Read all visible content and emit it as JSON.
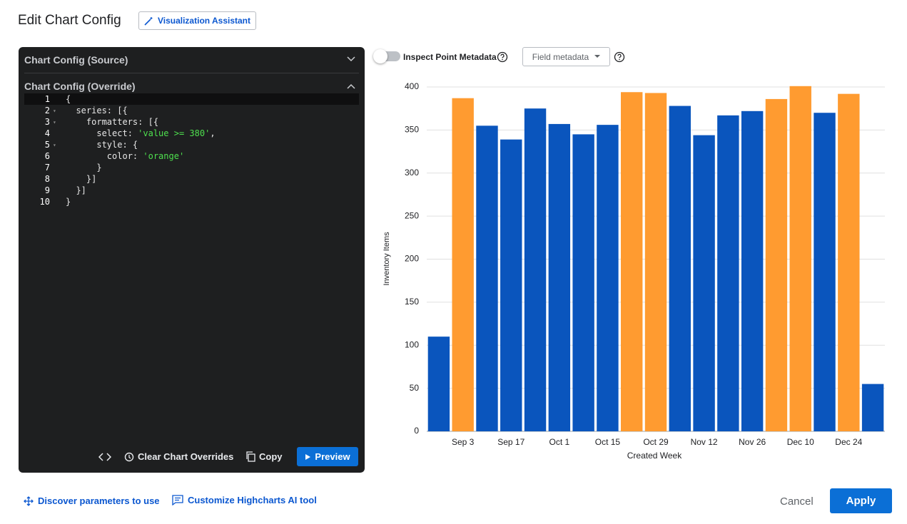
{
  "header": {
    "title": "Edit Chart Config",
    "assistant_button": "Visualization Assistant"
  },
  "editor": {
    "source_title": "Chart Config (Source)",
    "override_title": "Chart Config (Override)",
    "lines": [
      {
        "number": 1,
        "text": "{"
      },
      {
        "number": 2,
        "text": "  series: [{",
        "fold": true
      },
      {
        "number": 3,
        "text": "    formatters: [{",
        "fold": true
      },
      {
        "number": 4,
        "text": "      select: 'value >= 380',"
      },
      {
        "number": 5,
        "text": "      style: {",
        "fold": true
      },
      {
        "number": 6,
        "text": "        color: 'orange'"
      },
      {
        "number": 7,
        "text": "      }"
      },
      {
        "number": 8,
        "text": "    }]"
      },
      {
        "number": 9,
        "text": "  }]"
      },
      {
        "number": 10,
        "text": "}"
      }
    ],
    "actions": {
      "clear": "Clear Chart Overrides",
      "copy": "Copy",
      "preview": "Preview"
    }
  },
  "toolbar": {
    "inspect": "Inspect Point Metadata",
    "field_metadata": "Field metadata"
  },
  "chart_data": {
    "type": "bar",
    "xlabel": "Created Week",
    "ylabel": "Inventory Items",
    "categories": [
      null,
      "Sep 3",
      null,
      "Sep 17",
      null,
      "Oct 1",
      null,
      "Oct 15",
      null,
      "Oct 29",
      null,
      "Nov 12",
      null,
      "Nov 26",
      null,
      "Dec 10",
      null,
      "Dec 24",
      null
    ],
    "values": [
      110,
      387,
      355,
      339,
      375,
      357,
      345,
      356,
      394,
      393,
      378,
      344,
      367,
      372,
      386,
      401,
      370,
      392,
      55
    ],
    "colors": [
      "#0a55bd",
      "#ff9b30",
      "#0a55bd",
      "#0a55bd",
      "#0a55bd",
      "#0a55bd",
      "#0a55bd",
      "#0a55bd",
      "#ff9b30",
      "#ff9b30",
      "#0a55bd",
      "#0a55bd",
      "#0a55bd",
      "#0a55bd",
      "#ff9b30",
      "#ff9b30",
      "#0a55bd",
      "#ff9b30",
      "#0a55bd"
    ],
    "ylim": [
      0,
      400
    ],
    "yticks": [
      0,
      50,
      100,
      150,
      200,
      250,
      300,
      350,
      400
    ],
    "grid": true
  },
  "footer": {
    "discover": "Discover parameters to use",
    "customize": "Customize Highcharts AI tool",
    "cancel": "Cancel",
    "apply": "Apply"
  }
}
